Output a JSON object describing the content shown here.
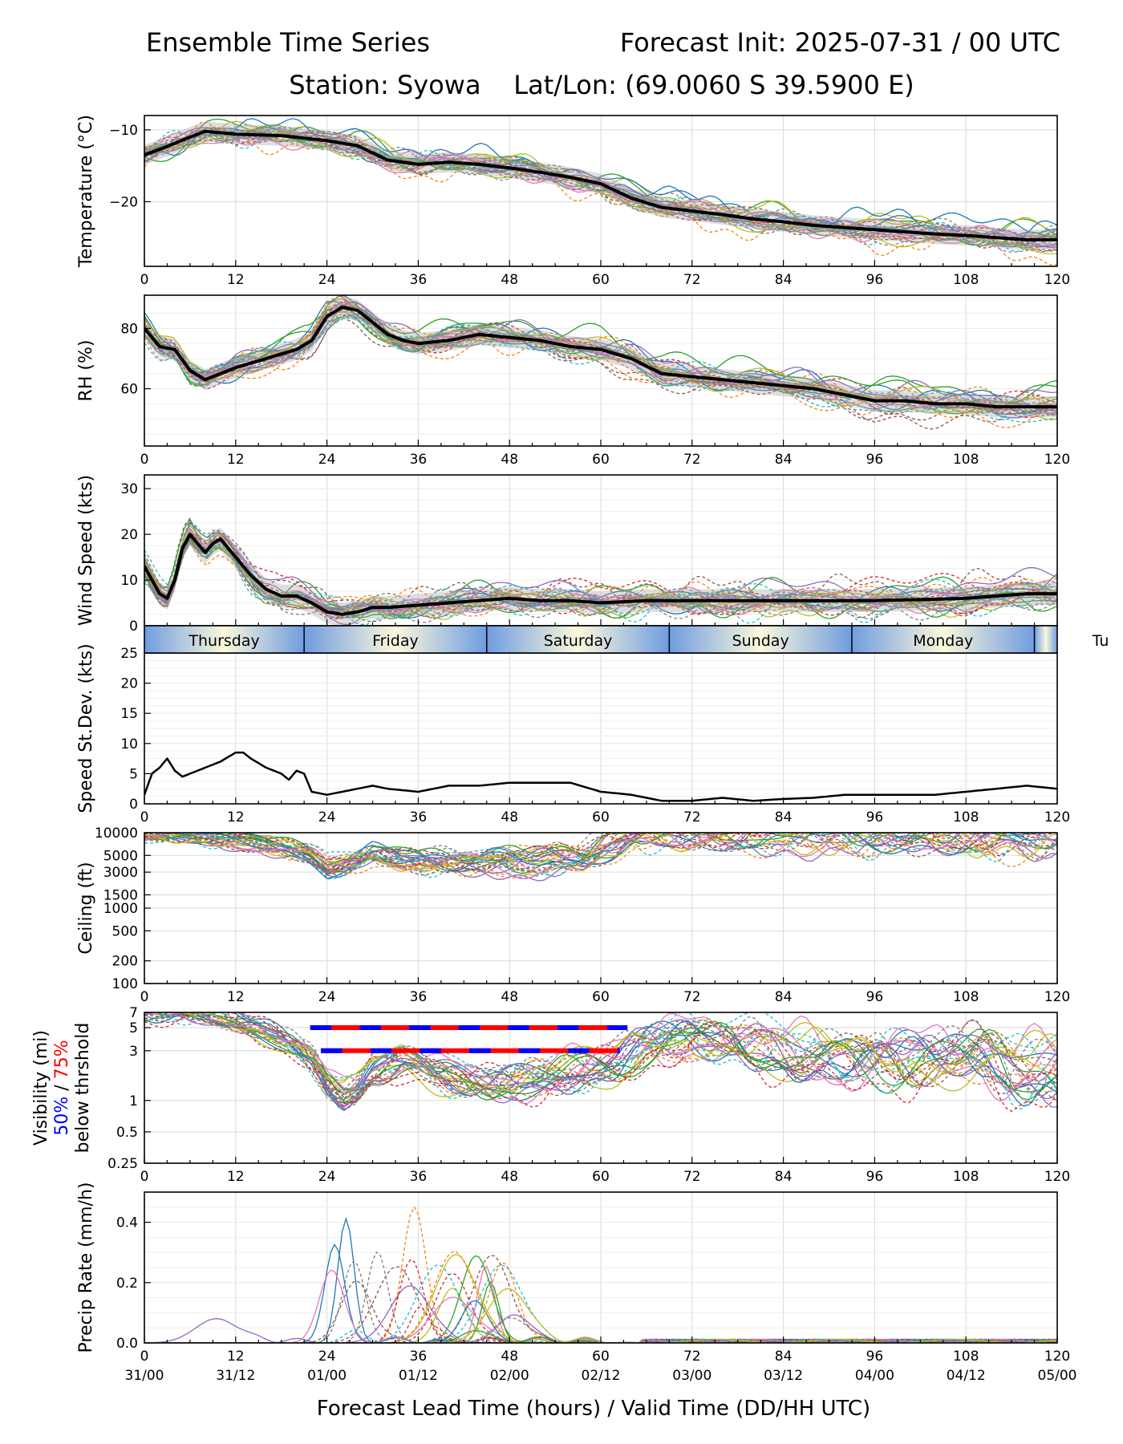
{
  "header": {
    "title_left": "Ensemble Time Series",
    "title_right": "Forecast Init: 2025-07-31 / 00 UTC",
    "station_line": "Station: Syowa    Lat/Lon: (69.0060 S 39.5900 E)"
  },
  "xlabel": "Forecast Lead Time (hours) / Valid Time (DD/HH UTC)",
  "x_ticks": [
    0,
    12,
    24,
    36,
    48,
    60,
    72,
    84,
    96,
    108,
    120
  ],
  "x_tick_labels": [
    "0",
    "12",
    "24",
    "36",
    "48",
    "60",
    "72",
    "84",
    "96",
    "108",
    "120"
  ],
  "valid_time_labels": [
    "31/00",
    "31/12",
    "01/00",
    "01/12",
    "02/00",
    "02/12",
    "03/00",
    "03/12",
    "04/00",
    "04/12",
    "05/00"
  ],
  "day_band": {
    "days": [
      "Thursday",
      "Friday",
      "Saturday",
      "Sunday",
      "Monday",
      "Tu"
    ],
    "boundaries": [
      21,
      45,
      69,
      93,
      117
    ],
    "colors": [
      "#6f9ce0",
      "#fbf8dc"
    ]
  },
  "member_colors": [
    "#1f77b4",
    "#ff7f0e",
    "#2ca02c",
    "#d62728",
    "#9467bd",
    "#8c564b",
    "#e377c2",
    "#7f7f7f",
    "#bcbd22",
    "#17becf"
  ],
  "chart_data": [
    {
      "type": "line",
      "ylabel": "Temperature (°C)",
      "ylim": [
        -29,
        -8
      ],
      "yticks": [
        -10,
        -20
      ],
      "ytick_labels": [
        "−10",
        "−20"
      ],
      "x": [
        0,
        3,
        6,
        8,
        12,
        18,
        24,
        28,
        32,
        36,
        40,
        44,
        48,
        52,
        56,
        60,
        64,
        68,
        72,
        76,
        80,
        84,
        88,
        92,
        96,
        100,
        104,
        108,
        112,
        116,
        120
      ],
      "series": [
        {
          "name": "ensemble mean",
          "values": [
            -13.5,
            -12.3,
            -11,
            -10.2,
            -10.6,
            -10.8,
            -11.5,
            -12.2,
            -14.2,
            -14.8,
            -14.5,
            -14.8,
            -15.3,
            -15.9,
            -16.6,
            -17.5,
            -19.5,
            -20.8,
            -21.3,
            -21.8,
            -22.4,
            -22.8,
            -23.3,
            -23.6,
            -23.9,
            -24.2,
            -24.5,
            -24.7,
            -25.0,
            -25.3,
            -25.3
          ]
        }
      ],
      "spread_halfwidth": 1.4,
      "members": 30
    },
    {
      "type": "line",
      "ylabel": "RH (%)",
      "ylim": [
        41,
        91
      ],
      "yticks": [
        60,
        80
      ],
      "ytick_labels": [
        "60",
        "80"
      ],
      "x": [
        0,
        2,
        4,
        6,
        8,
        10,
        12,
        16,
        20,
        22,
        24,
        26,
        28,
        30,
        32,
        34,
        36,
        40,
        44,
        48,
        52,
        56,
        60,
        64,
        68,
        72,
        76,
        80,
        84,
        88,
        92,
        96,
        100,
        104,
        108,
        112,
        116,
        120
      ],
      "series": [
        {
          "name": "ensemble mean",
          "values": [
            80,
            74,
            73,
            66,
            63,
            65,
            67,
            70,
            73,
            76,
            84,
            87,
            86,
            82,
            78,
            76,
            75,
            76,
            78,
            77,
            76,
            74,
            73,
            70,
            65,
            64,
            63,
            62,
            61,
            60,
            58,
            56,
            56,
            55,
            55,
            54,
            54,
            54
          ]
        }
      ],
      "spread_halfwidth": 3.5,
      "members": 30
    },
    {
      "type": "line",
      "ylabel": "Wind Speed (kts)",
      "ylim": [
        0,
        33
      ],
      "yticks": [
        0,
        10,
        20,
        30
      ],
      "ytick_labels": [
        "0",
        "10",
        "20",
        "30"
      ],
      "x": [
        0,
        1,
        2,
        3,
        4,
        5,
        6,
        7,
        8,
        9,
        10,
        11,
        12,
        14,
        16,
        18,
        20,
        22,
        24,
        26,
        28,
        30,
        32,
        36,
        40,
        44,
        48,
        52,
        56,
        60,
        66,
        72,
        80,
        88,
        96,
        104,
        108,
        112,
        116,
        120
      ],
      "series": [
        {
          "name": "ensemble mean",
          "values": [
            13,
            10,
            7,
            6,
            10,
            17,
            20,
            18,
            16,
            18,
            19,
            17,
            15,
            11,
            8,
            6.5,
            6.5,
            5,
            3,
            2.5,
            3,
            4,
            4,
            4.5,
            5,
            5.5,
            6,
            5.5,
            5.5,
            5,
            5.5,
            5.5,
            5.5,
            5.5,
            5.5,
            5.8,
            6,
            6.5,
            7,
            7
          ]
        }
      ],
      "spread_halfwidth": 2.5,
      "members": 30
    },
    {
      "type": "line",
      "ylabel": "Speed St.Dev. (kts)",
      "ylim": [
        0,
        25
      ],
      "yticks": [
        0,
        5,
        10,
        15,
        20,
        25
      ],
      "ytick_labels": [
        "0",
        "5",
        "10",
        "15",
        "20",
        "25"
      ],
      "x": [
        0,
        1,
        2,
        3,
        4,
        5,
        6,
        8,
        10,
        12,
        13,
        14,
        16,
        18,
        19,
        20,
        21,
        22,
        24,
        26,
        28,
        30,
        32,
        36,
        40,
        44,
        48,
        52,
        56,
        60,
        64,
        68,
        72,
        76,
        80,
        84,
        88,
        92,
        96,
        100,
        104,
        108,
        112,
        116,
        120
      ],
      "series": [
        {
          "name": "std dev",
          "values": [
            1.5,
            5,
            6,
            7.5,
            5.5,
            4.5,
            5,
            6,
            7,
            8.5,
            8.5,
            7.5,
            6,
            5,
            4,
            5.5,
            5,
            2,
            1.5,
            2,
            2.5,
            3,
            2.5,
            2,
            3,
            3,
            3.5,
            3.5,
            3.5,
            2,
            1.5,
            0.5,
            0.5,
            1,
            0.5,
            0.8,
            1,
            1.5,
            1.5,
            1.5,
            1.5,
            2,
            2.5,
            3,
            2.5
          ]
        }
      ]
    },
    {
      "type": "line",
      "ylabel": "Ceiling (ft)",
      "yscale": "log",
      "ylim": [
        100,
        10000
      ],
      "yticks": [
        100,
        200,
        500,
        1000,
        1500,
        3000,
        5000,
        10000
      ],
      "ytick_labels": [
        "100",
        "200",
        "500",
        "1000",
        "1500",
        "3000",
        "5000",
        "10000"
      ],
      "x": [
        0,
        6,
        12,
        18,
        22,
        24,
        26,
        28,
        30,
        34,
        38,
        42,
        46,
        50,
        54,
        58,
        62,
        64
      ],
      "series": [
        {
          "name": "member median",
          "values": [
            9500,
            9000,
            8000,
            6500,
            5000,
            3500,
            3800,
            4500,
            5500,
            4500,
            4200,
            4000,
            4200,
            4000,
            4500,
            5000,
            7500,
            9800
          ]
        }
      ],
      "members": 30
    },
    {
      "type": "line",
      "ylabel_lines": [
        "Visibility (mi)",
        "50% / 75%",
        "below thrshold"
      ],
      "legend_50": "50%",
      "legend_sep": " / ",
      "legend_75": "75%",
      "yscale": "log",
      "ylim": [
        0.25,
        7
      ],
      "yticks": [
        0.25,
        0.5,
        1,
        3,
        5,
        7
      ],
      "ytick_labels": [
        "0.25",
        "0.5",
        "1",
        "3",
        "5",
        "7"
      ],
      "x": [
        0,
        8,
        12,
        18,
        22,
        24,
        26,
        28,
        30,
        34,
        38,
        42,
        46,
        50,
        54,
        58,
        62,
        66,
        72,
        80,
        90,
        100,
        110,
        114,
        120
      ],
      "series": [
        {
          "name": "member median",
          "values": [
            7,
            7,
            6,
            4,
            2.5,
            1.5,
            1.1,
            1.3,
            2,
            2.5,
            1.8,
            1.6,
            1.5,
            1.6,
            1.8,
            2,
            2.4,
            3.5,
            4,
            3.5,
            2.5,
            2.5,
            3,
            2,
            2
          ]
        }
      ],
      "threshold_bars": [
        {
          "level": 5,
          "start": 21.8,
          "end": 63.5,
          "label": "75%"
        },
        {
          "level": 3,
          "start": 23.2,
          "end": 62.5,
          "label": "75%"
        }
      ],
      "members": 30
    },
    {
      "type": "line",
      "ylabel": "Precip Rate (mm/h)",
      "ylim": [
        0,
        0.5
      ],
      "yticks": [
        0.0,
        0.2,
        0.4
      ],
      "ytick_labels": [
        "0.0",
        "0.2",
        "0.4"
      ],
      "peaks": [
        {
          "x": 26.5,
          "value": 0.41
        },
        {
          "x": 35.5,
          "value": 0.45
        },
        {
          "x": 45.5,
          "value": 0.2
        },
        {
          "x": 40.5,
          "value": 0.23
        },
        {
          "x": 9.5,
          "value": 0.08
        }
      ],
      "members": 30
    }
  ]
}
